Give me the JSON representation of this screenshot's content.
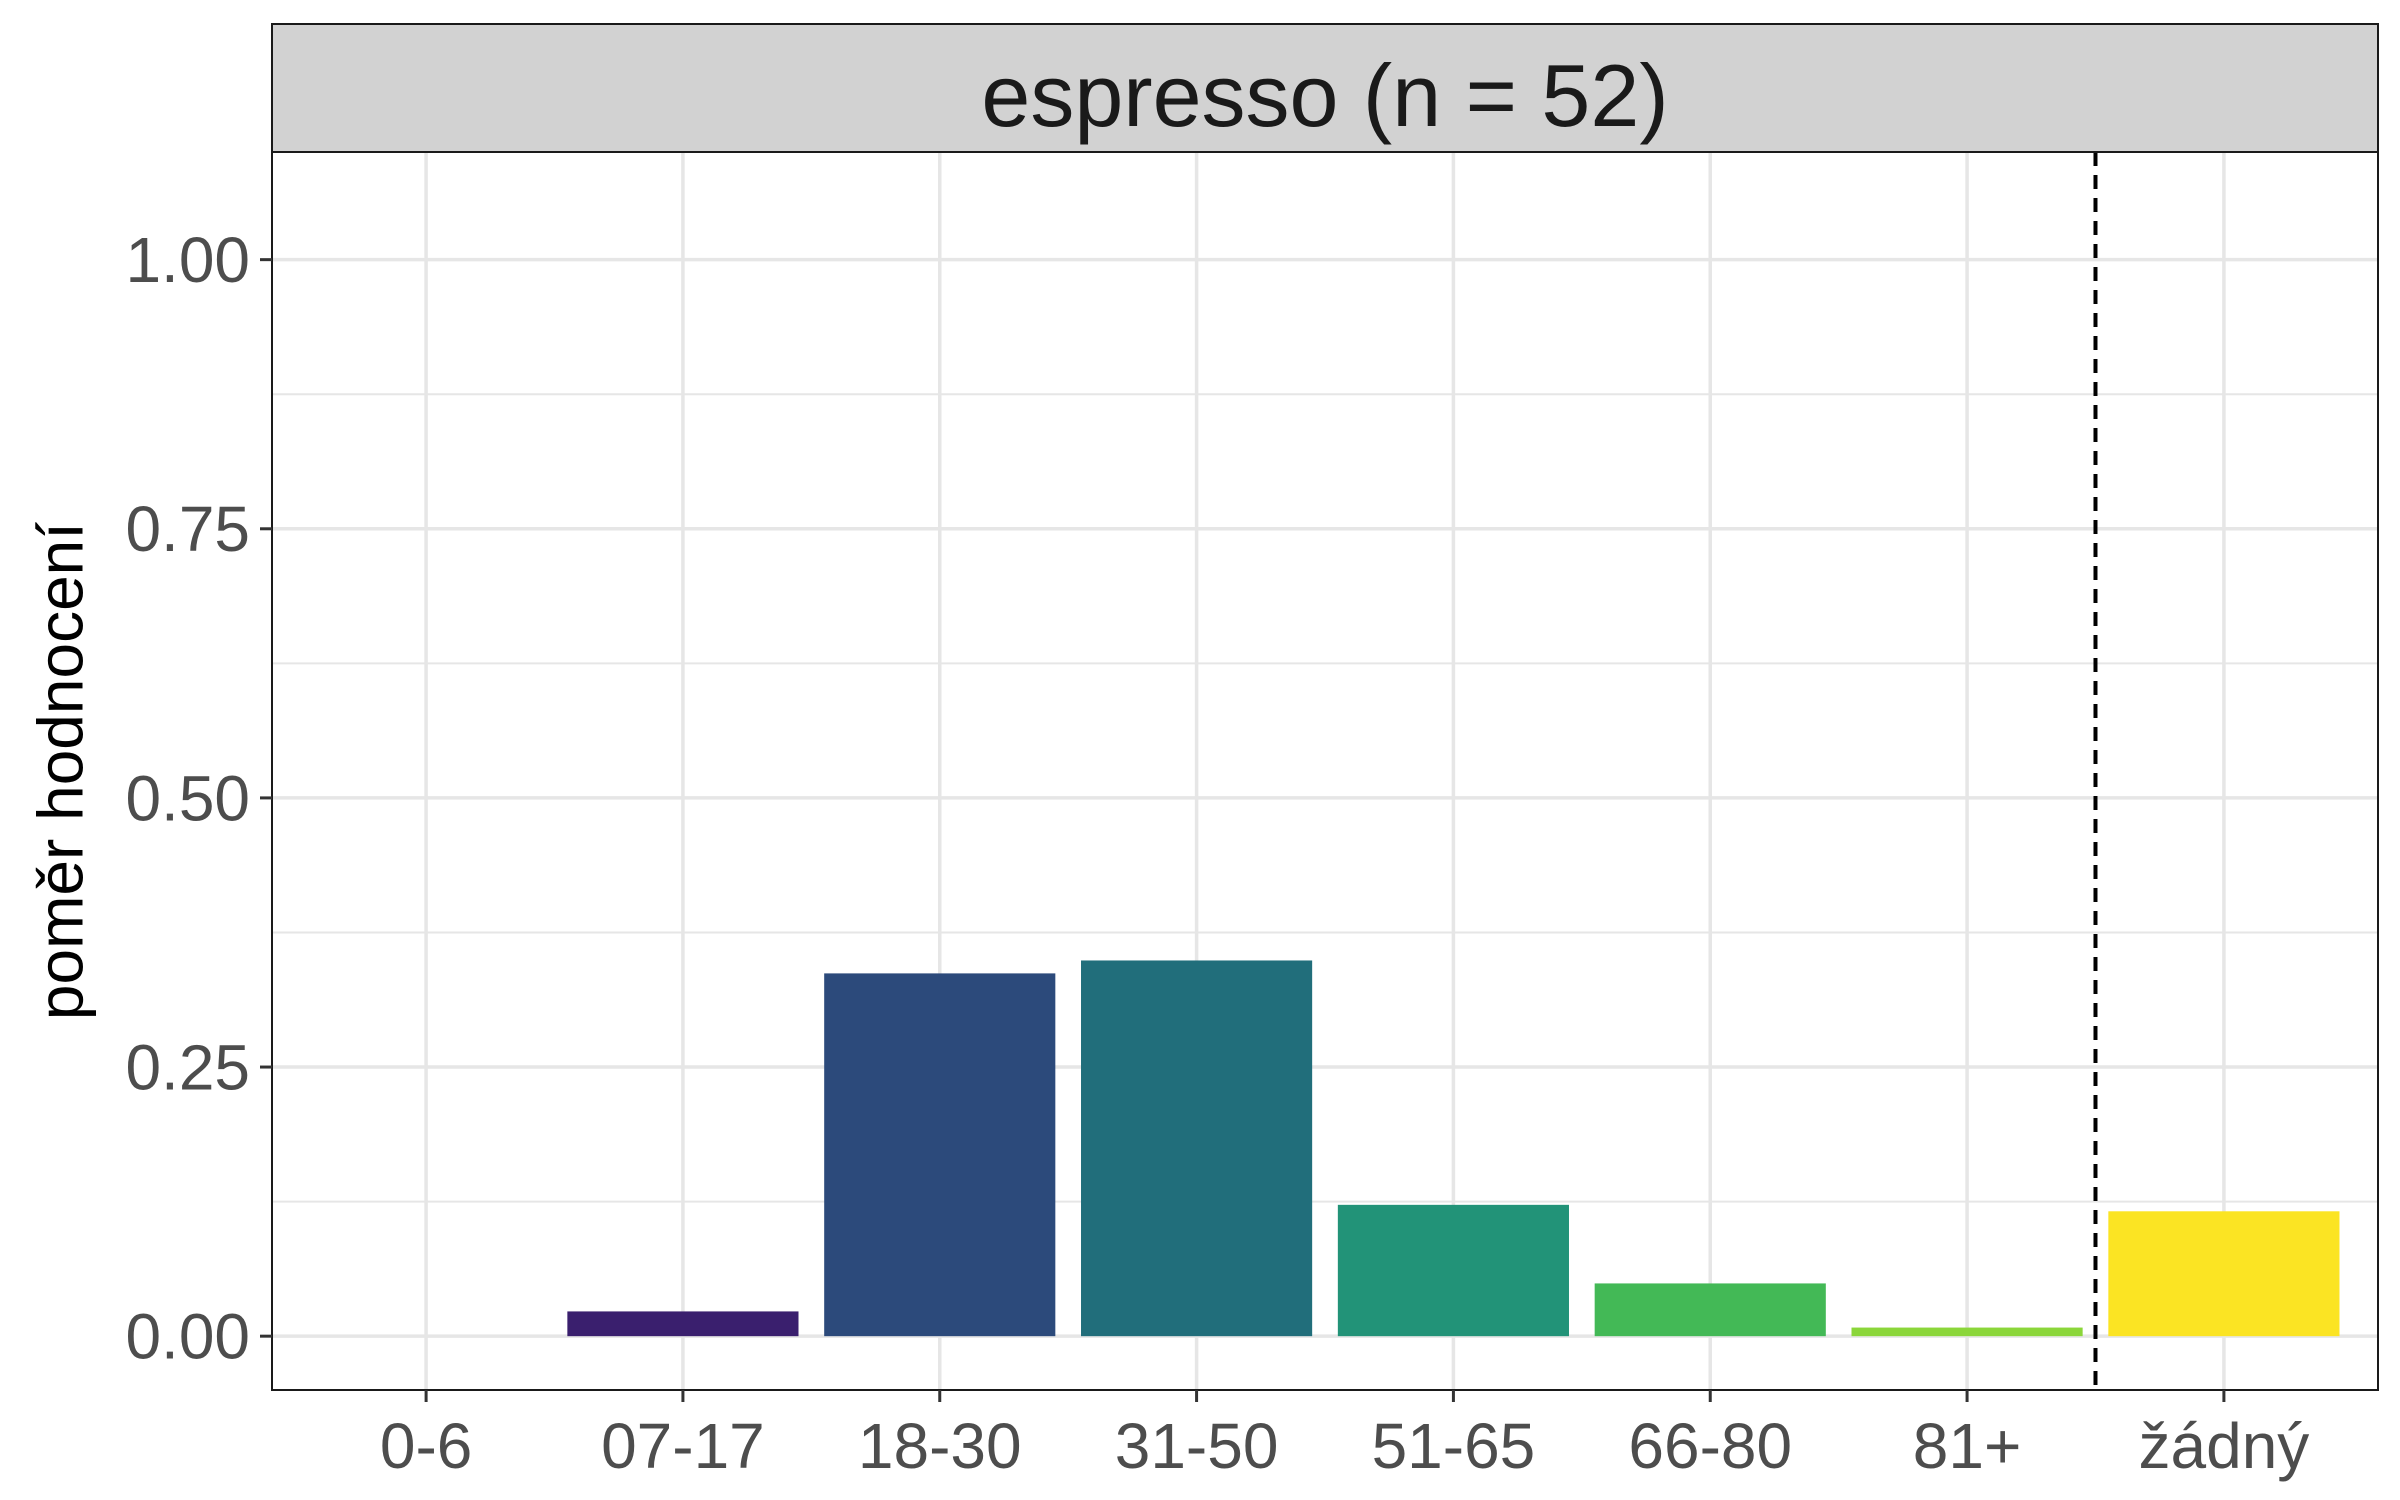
{
  "chart_data": {
    "type": "bar",
    "facet_title": "espresso (n = 52)",
    "ylabel": "poměr hodnocení",
    "xlabel": "",
    "categories": [
      "0-6",
      "07-17",
      "18-30",
      "31-50",
      "51-65",
      "66-80",
      "81+",
      "žádný"
    ],
    "values": [
      0.0,
      0.023,
      0.337,
      0.349,
      0.122,
      0.049,
      0.008,
      0.116
    ],
    "colors": [
      "#440154",
      "#3a1f6e",
      "#2c4a7b",
      "#216e7b",
      "#229378",
      "#43b956",
      "#8bd63a",
      "#fbe423"
    ],
    "ylim": [
      -0.05,
      1.1
    ],
    "yticks": [
      "0.00",
      "0.25",
      "0.50",
      "0.75",
      "1.00"
    ],
    "ytick_values": [
      0,
      0.25,
      0.5,
      0.75,
      1.0
    ],
    "separator_between": [
      "81+",
      "žádný"
    ],
    "grid": true,
    "legend": "none",
    "colors_ui": {
      "strip_background": "#d2d2d2",
      "grid": "#e6e6e6",
      "panel_border": "#1a1a1a"
    }
  }
}
